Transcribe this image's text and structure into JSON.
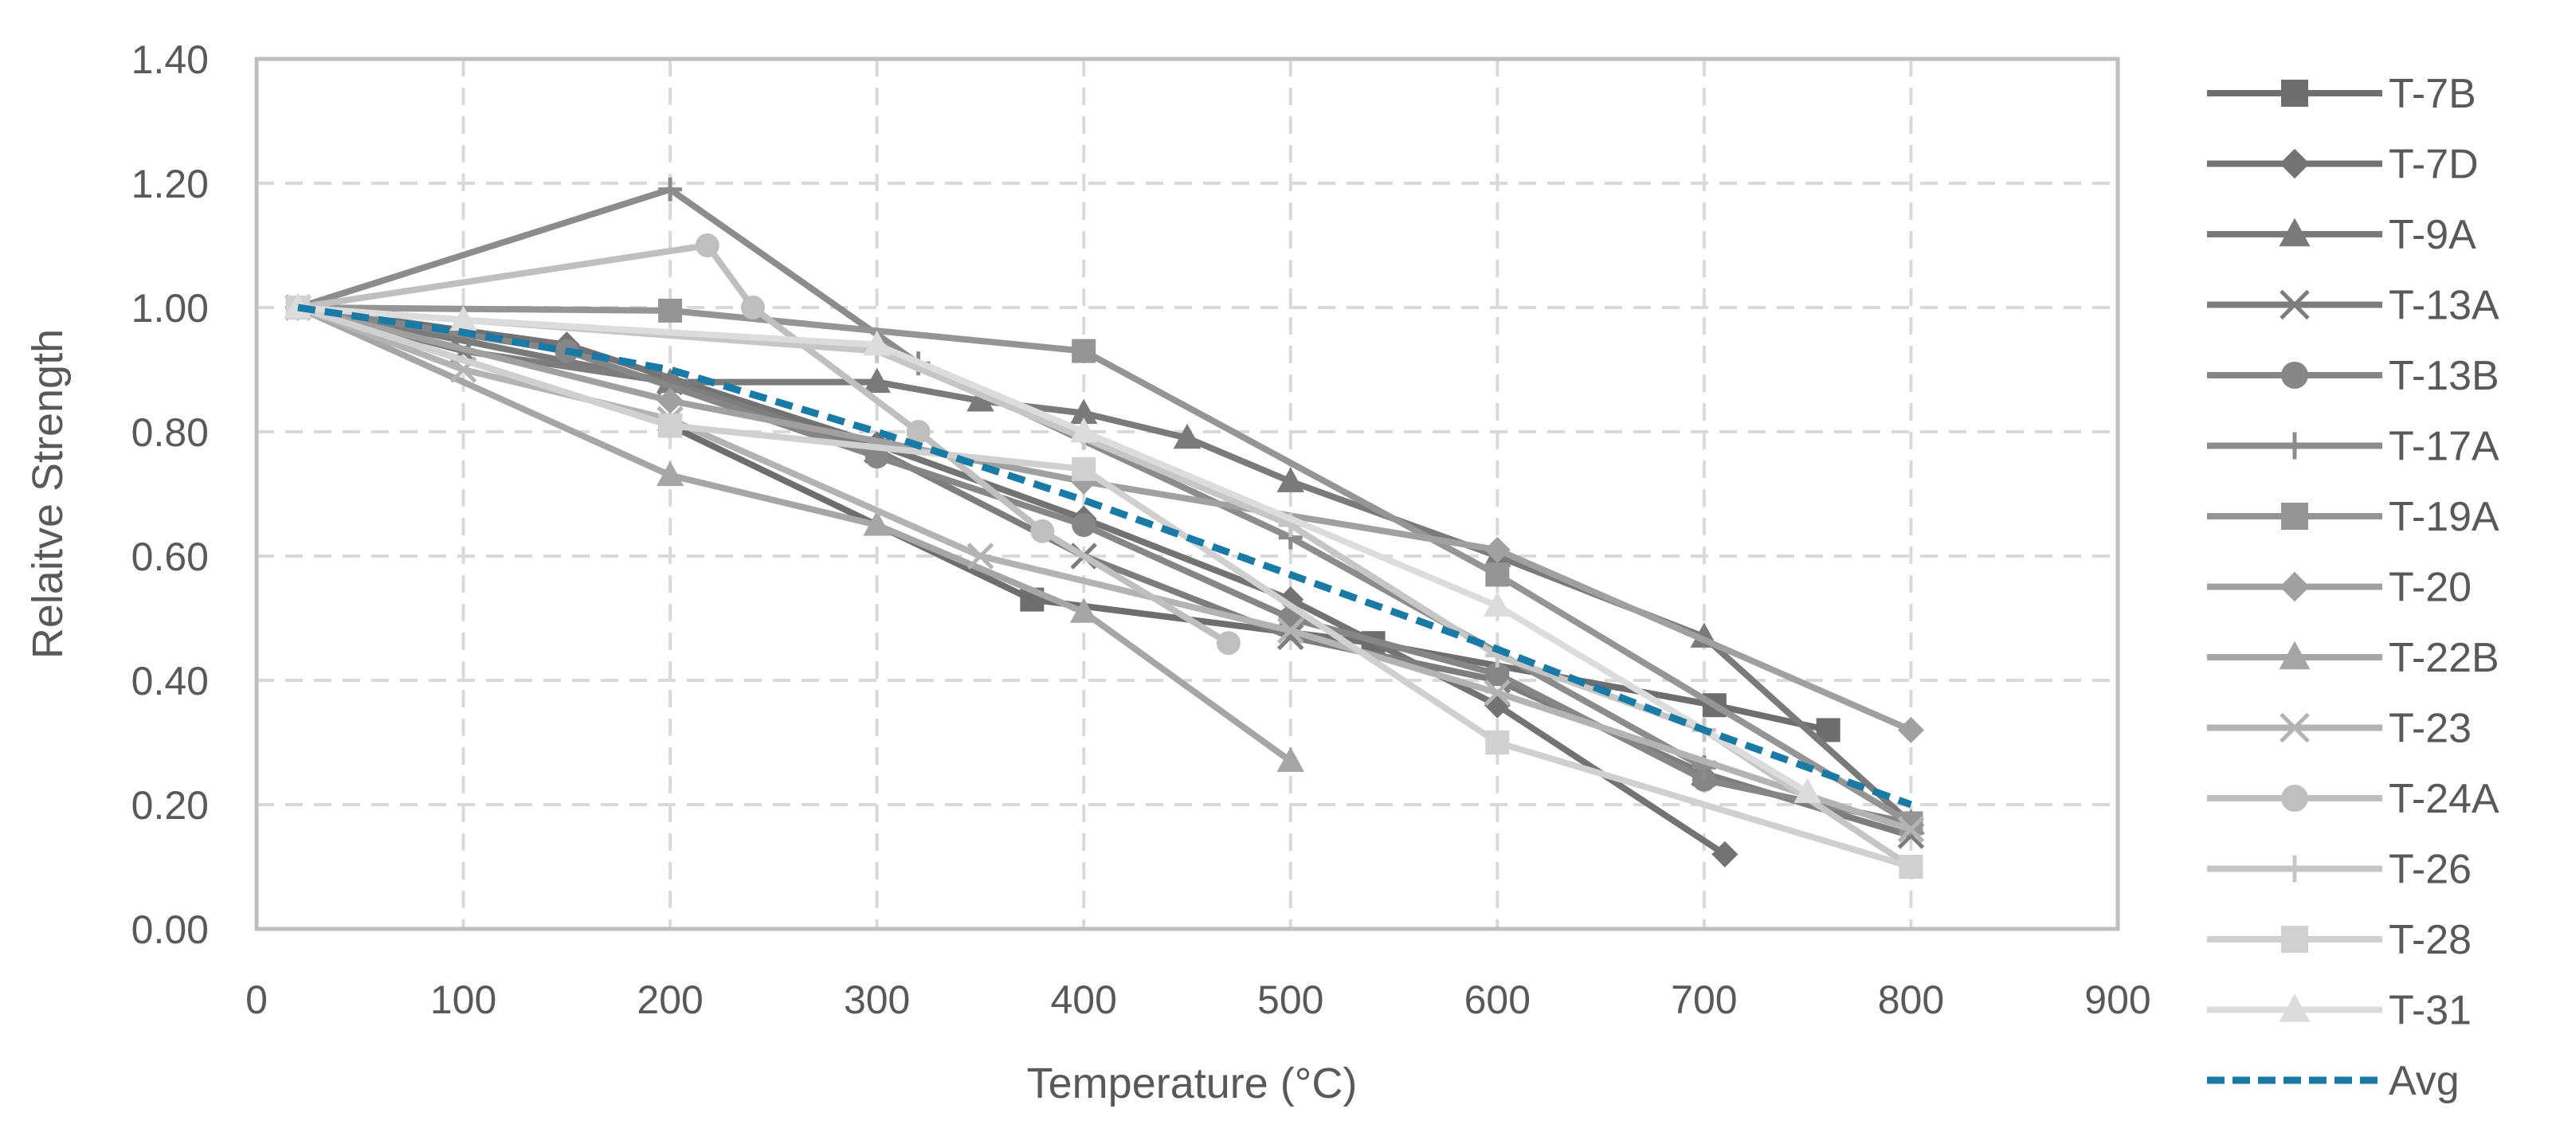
{
  "chart_data": {
    "type": "line",
    "title": "",
    "xlabel": "Temperature (°C)",
    "ylabel": "Relaitve Strength",
    "xlim": [
      0,
      900
    ],
    "ylim": [
      0,
      1.4
    ],
    "x_ticks": [
      "0",
      "100",
      "200",
      "300",
      "400",
      "500",
      "600",
      "700",
      "800",
      "900"
    ],
    "y_ticks": [
      "0.00",
      "0.20",
      "0.40",
      "0.60",
      "0.80",
      "1.00",
      "1.20",
      "1.40"
    ],
    "grid": true,
    "legend_position": "right",
    "series": [
      {
        "name": "T-7B",
        "marker": "square",
        "color": "#6e6e6e",
        "x": [
          20,
          200,
          375,
          540,
          705,
          760
        ],
        "y": [
          1.0,
          0.81,
          0.53,
          0.46,
          0.36,
          0.32
        ]
      },
      {
        "name": "T-7D",
        "marker": "diamond",
        "color": "#737373",
        "x": [
          20,
          150,
          300,
          400,
          500,
          600,
          710
        ],
        "y": [
          1.0,
          0.94,
          0.78,
          0.66,
          0.53,
          0.36,
          0.12
        ]
      },
      {
        "name": "T-9A",
        "marker": "triangle",
        "color": "#7a7a7a",
        "x": [
          20,
          200,
          300,
          350,
          400,
          450,
          500,
          600,
          700,
          800
        ],
        "y": [
          1.0,
          0.88,
          0.88,
          0.85,
          0.83,
          0.79,
          0.72,
          0.6,
          0.47,
          0.17
        ]
      },
      {
        "name": "T-13A",
        "marker": "x",
        "color": "#7d7d7d",
        "x": [
          20,
          100,
          200,
          300,
          400,
          500,
          600,
          700,
          800
        ],
        "y": [
          1.0,
          0.93,
          0.88,
          0.77,
          0.6,
          0.47,
          0.4,
          0.25,
          0.15
        ]
      },
      {
        "name": "T-13B",
        "marker": "circle",
        "color": "#868686",
        "x": [
          20,
          150,
          300,
          400,
          500,
          600,
          700,
          800
        ],
        "y": [
          1.0,
          0.93,
          0.76,
          0.65,
          0.5,
          0.41,
          0.24,
          0.17
        ]
      },
      {
        "name": "T-17A",
        "marker": "plus",
        "color": "#8c8c8c",
        "x": [
          20,
          200,
          320,
          500,
          700
        ],
        "y": [
          1.0,
          1.19,
          0.91,
          0.63,
          0.26
        ]
      },
      {
        "name": "T-19A",
        "marker": "square",
        "color": "#959595",
        "x": [
          20,
          200,
          400,
          600,
          800
        ],
        "y": [
          1.0,
          0.995,
          0.93,
          0.57,
          0.17
        ]
      },
      {
        "name": "T-20",
        "marker": "diamond",
        "color": "#a0a0a0",
        "x": [
          20,
          200,
          400,
          600,
          800
        ],
        "y": [
          1.0,
          0.85,
          0.72,
          0.61,
          0.32
        ]
      },
      {
        "name": "T-22B",
        "marker": "triangle",
        "color": "#a6a6a6",
        "x": [
          20,
          200,
          300,
          400,
          500
        ],
        "y": [
          1.0,
          0.73,
          0.65,
          0.51,
          0.27
        ]
      },
      {
        "name": "T-23",
        "marker": "x",
        "color": "#b3b3b3",
        "x": [
          20,
          100,
          200,
          350,
          500,
          600,
          800
        ],
        "y": [
          1.0,
          0.9,
          0.82,
          0.6,
          0.48,
          0.38,
          0.16
        ]
      },
      {
        "name": "T-24A",
        "marker": "circle",
        "color": "#bfbfbf",
        "x": [
          20,
          218,
          240,
          320,
          380,
          470
        ],
        "y": [
          1.0,
          1.1,
          1.0,
          0.8,
          0.64,
          0.46
        ]
      },
      {
        "name": "T-26",
        "marker": "plus",
        "color": "#c6c6c6",
        "x": [
          20,
          300,
          400,
          500,
          600,
          700,
          800
        ],
        "y": [
          1.0,
          0.93,
          0.79,
          0.65,
          0.44,
          0.32,
          0.1
        ]
      },
      {
        "name": "T-28",
        "marker": "square",
        "color": "#d0d0d0",
        "x": [
          20,
          200,
          400,
          600,
          800
        ],
        "y": [
          1.0,
          0.81,
          0.74,
          0.3,
          0.1
        ]
      },
      {
        "name": "T-31",
        "marker": "triangle",
        "color": "#dcdcdc",
        "x": [
          20,
          100,
          300,
          400,
          600,
          750
        ],
        "y": [
          1.0,
          0.98,
          0.94,
          0.8,
          0.52,
          0.22
        ]
      }
    ],
    "average": {
      "name": "Avg",
      "color": "#1a7aa6",
      "style": "dashed",
      "x": [
        20,
        100,
        200,
        300,
        400,
        500,
        600,
        700,
        800
      ],
      "y": [
        1.0,
        0.96,
        0.9,
        0.8,
        0.69,
        0.57,
        0.45,
        0.32,
        0.2
      ]
    }
  }
}
